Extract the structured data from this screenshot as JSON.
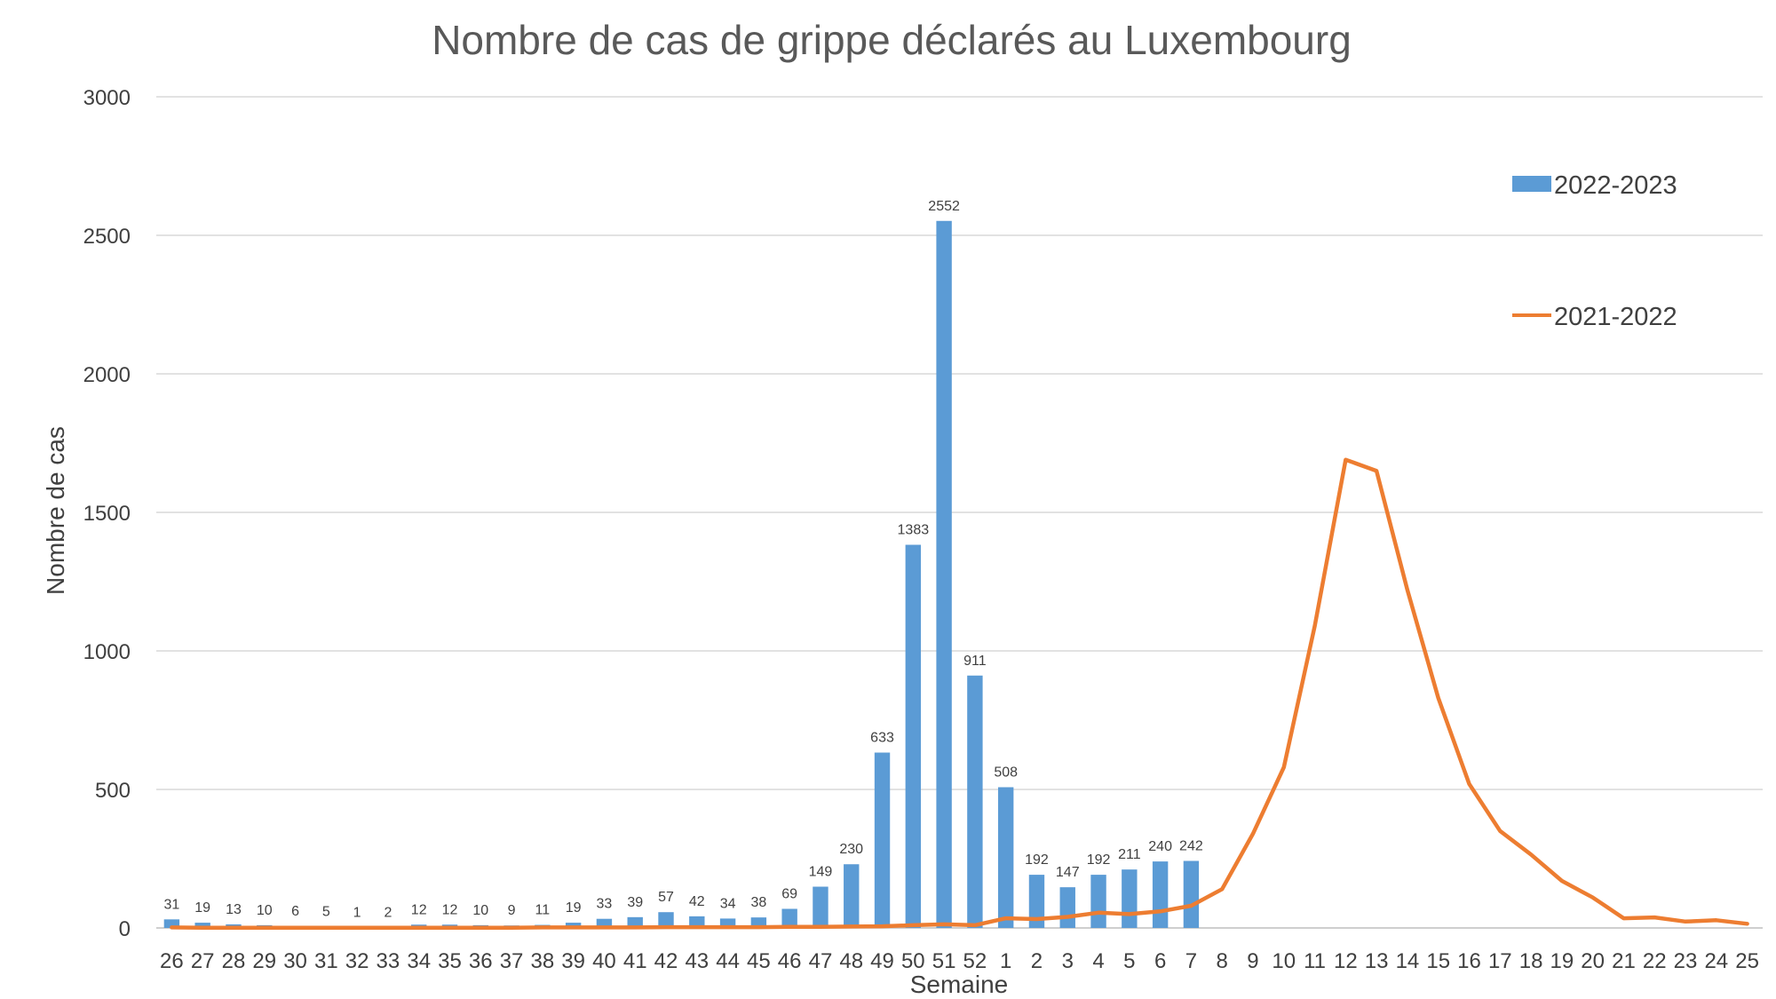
{
  "chart_data": {
    "type": "bar",
    "title": "Nombre de cas de grippe déclarés au Luxembourg",
    "xlabel": "Semaine",
    "ylabel": "Nombre de cas",
    "ylim": [
      0,
      3000
    ],
    "yticks": [
      "0",
      "500",
      "1000",
      "1500",
      "2000",
      "2500",
      "3000"
    ],
    "grid": true,
    "legend_position": "right",
    "categories": [
      "26",
      "27",
      "28",
      "29",
      "30",
      "31",
      "32",
      "33",
      "34",
      "35",
      "36",
      "37",
      "38",
      "39",
      "40",
      "41",
      "42",
      "43",
      "44",
      "45",
      "46",
      "47",
      "48",
      "49",
      "50",
      "51",
      "52",
      "1",
      "2",
      "3",
      "4",
      "5",
      "6",
      "7",
      "8",
      "9",
      "10",
      "11",
      "12",
      "13",
      "14",
      "15",
      "16",
      "17",
      "18",
      "19",
      "20",
      "21",
      "22",
      "23",
      "24",
      "25"
    ],
    "series": [
      {
        "name": "2022-2023",
        "type": "bar",
        "color": "#5b9bd5",
        "values": [
          31,
          19,
          13,
          10,
          6,
          5,
          1,
          2,
          12,
          12,
          10,
          9,
          11,
          19,
          33,
          39,
          57,
          42,
          34,
          38,
          69,
          149,
          230,
          633,
          1383,
          2552,
          911,
          508,
          192,
          147,
          192,
          211,
          240,
          242,
          null,
          null,
          null,
          null,
          null,
          null,
          null,
          null,
          null,
          null,
          null,
          null,
          null,
          null,
          null,
          null,
          null,
          null
        ]
      },
      {
        "name": "2021-2022",
        "type": "line",
        "color": "#ed7d31",
        "values": [
          2,
          1,
          1,
          1,
          1,
          1,
          1,
          1,
          1,
          1,
          1,
          1,
          2,
          2,
          2,
          2,
          3,
          3,
          3,
          3,
          4,
          4,
          5,
          6,
          10,
          13,
          10,
          35,
          32,
          40,
          55,
          50,
          60,
          80,
          140,
          340,
          580,
          1090,
          1690,
          1650,
          1220,
          830,
          520,
          350,
          265,
          170,
          110,
          35,
          38,
          23,
          28,
          15
        ]
      }
    ]
  }
}
